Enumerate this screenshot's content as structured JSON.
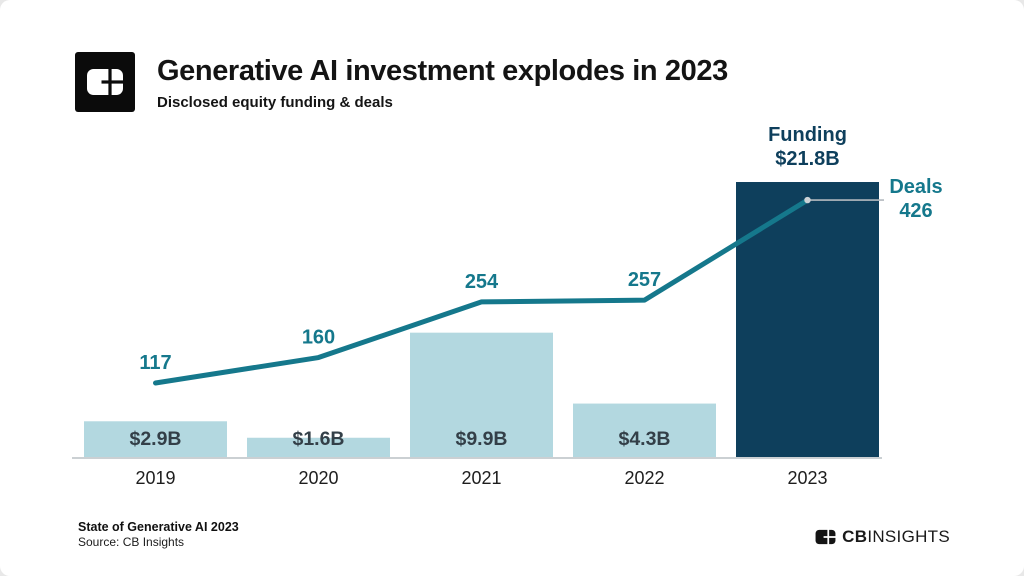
{
  "header": {
    "title": "Generative AI investment explodes in 2023",
    "subtitle": "Disclosed equity funding & deals",
    "logo_icon": "cb-insights-logomark"
  },
  "chart_data": {
    "type": "bar+line combo",
    "title": "Generative AI investment explodes in 2023",
    "subtitle": "Disclosed equity funding & deals",
    "categories": [
      "2019",
      "2020",
      "2021",
      "2022",
      "2023"
    ],
    "series": [
      {
        "name": "Funding",
        "type": "bar",
        "unit": "$B",
        "values": [
          2.9,
          1.6,
          9.9,
          4.3,
          21.8
        ],
        "labels": [
          "$2.9B",
          "$1.6B",
          "$9.9B",
          "$4.3B",
          "$21.8B"
        ],
        "highlight_index": 4
      },
      {
        "name": "Deals",
        "type": "line",
        "values": [
          117,
          160,
          254,
          257,
          426
        ],
        "labels": [
          "117",
          "160",
          "254",
          "257",
          "426"
        ]
      }
    ],
    "annotations": {
      "funding": {
        "title": "Funding",
        "value": "$21.8B"
      },
      "deals": {
        "title": "Deals",
        "value": "426"
      }
    },
    "colors": {
      "bar": "#b3d8e0",
      "bar_highlight": "#0e3f5c",
      "line": "#15788c",
      "deals_text": "#15788c",
      "funding_text": "#0e3f5c",
      "bar_label": "#333f48",
      "year_label": "#1d1d1d",
      "axis": "#cbd0d3",
      "leader": "#b4babf"
    },
    "grid": false,
    "legend_position": "none",
    "xlabel": "",
    "ylabel": ""
  },
  "footer": {
    "report_title": "State of Generative AI 2023",
    "source": "Source: CB Insights",
    "brand_cb": "CB",
    "brand_insights": "INSIGHTS",
    "brand_icon": "cb-insights-logomark"
  }
}
